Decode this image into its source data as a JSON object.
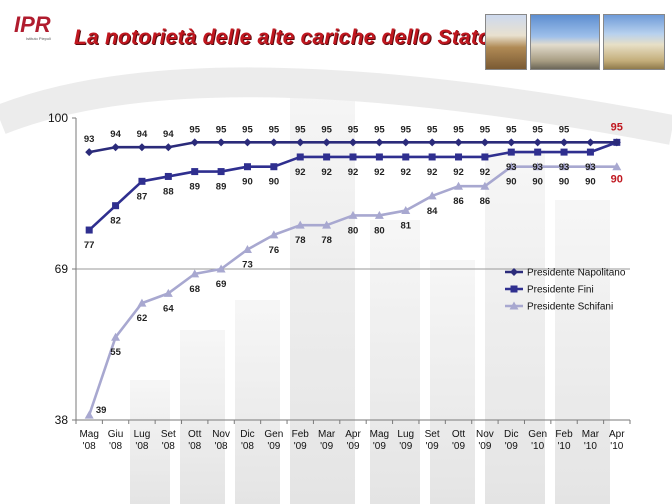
{
  "header": {
    "logo_text": "IPR",
    "logo_subtext": "Istituto Piepoli",
    "title": "La notorietà delle alte cariche dello Stato:"
  },
  "colors": {
    "title": "#c0171f",
    "napolitano": "#2b2b7a",
    "fini": "#2f2f8f",
    "schifani": "#a8a8d0",
    "highlight": "#c0171f"
  },
  "chart_data": {
    "type": "line",
    "ylim": [
      38,
      100
    ],
    "yticks": [
      "38",
      "69",
      "100"
    ],
    "categories": [
      [
        "Mag",
        "'08"
      ],
      [
        "Giu",
        "'08"
      ],
      [
        "Lug",
        "'08"
      ],
      [
        "Set",
        "'08"
      ],
      [
        "Ott",
        "'08"
      ],
      [
        "Nov",
        "'08"
      ],
      [
        "Dic",
        "'08"
      ],
      [
        "Gen",
        "'09"
      ],
      [
        "Feb",
        "'09"
      ],
      [
        "Mar",
        "'09"
      ],
      [
        "Apr",
        "'09"
      ],
      [
        "Mag",
        "'09"
      ],
      [
        "Lug",
        "'09"
      ],
      [
        "Set",
        "'09"
      ],
      [
        "Ott",
        "'09"
      ],
      [
        "Nov",
        "'09"
      ],
      [
        "Dic",
        "'09"
      ],
      [
        "Gen",
        "'10"
      ],
      [
        "Feb",
        "'10"
      ],
      [
        "Mar",
        "'10"
      ],
      [
        "Apr",
        "'10"
      ]
    ],
    "series": [
      {
        "name": "Presidente Napolitano",
        "marker": "diamond",
        "color": "#2b2b7a",
        "values": [
          93,
          94,
          94,
          94,
          95,
          95,
          95,
          95,
          95,
          95,
          95,
          95,
          95,
          95,
          95,
          95,
          95,
          95,
          95,
          95,
          95
        ],
        "labels": [
          "93",
          "94",
          "94",
          "94",
          "95",
          "95",
          "95",
          "95",
          "95",
          "95",
          "95",
          "95",
          "95",
          "95",
          "95",
          "95",
          "95",
          "95",
          "95",
          "",
          "95"
        ]
      },
      {
        "name": "Presidente Fini",
        "marker": "square",
        "color": "#2f2f8f",
        "values": [
          77,
          82,
          87,
          88,
          89,
          89,
          90,
          90,
          92,
          92,
          92,
          92,
          92,
          92,
          92,
          92,
          93,
          93,
          93,
          93,
          95
        ],
        "labels": [
          "77",
          "82",
          "87",
          "88",
          "89",
          "89",
          "90",
          "90",
          "92",
          "92",
          "92",
          "92",
          "92",
          "92",
          "92",
          "92",
          "93",
          "93",
          "93",
          "93",
          ""
        ]
      },
      {
        "name": "Presidente Schifani",
        "marker": "triangle",
        "color": "#a8a8d0",
        "values": [
          39,
          55,
          62,
          64,
          68,
          69,
          73,
          76,
          78,
          78,
          80,
          80,
          81,
          84,
          86,
          86,
          90,
          90,
          90,
          90,
          90
        ],
        "labels": [
          "39",
          "55",
          "62",
          "64",
          "68",
          "69",
          "73",
          "76",
          "78",
          "78",
          "80",
          "80",
          "81",
          "84",
          "86",
          "86",
          "90",
          "90",
          "90",
          "90",
          "90"
        ]
      }
    ],
    "legend_position": "right"
  }
}
